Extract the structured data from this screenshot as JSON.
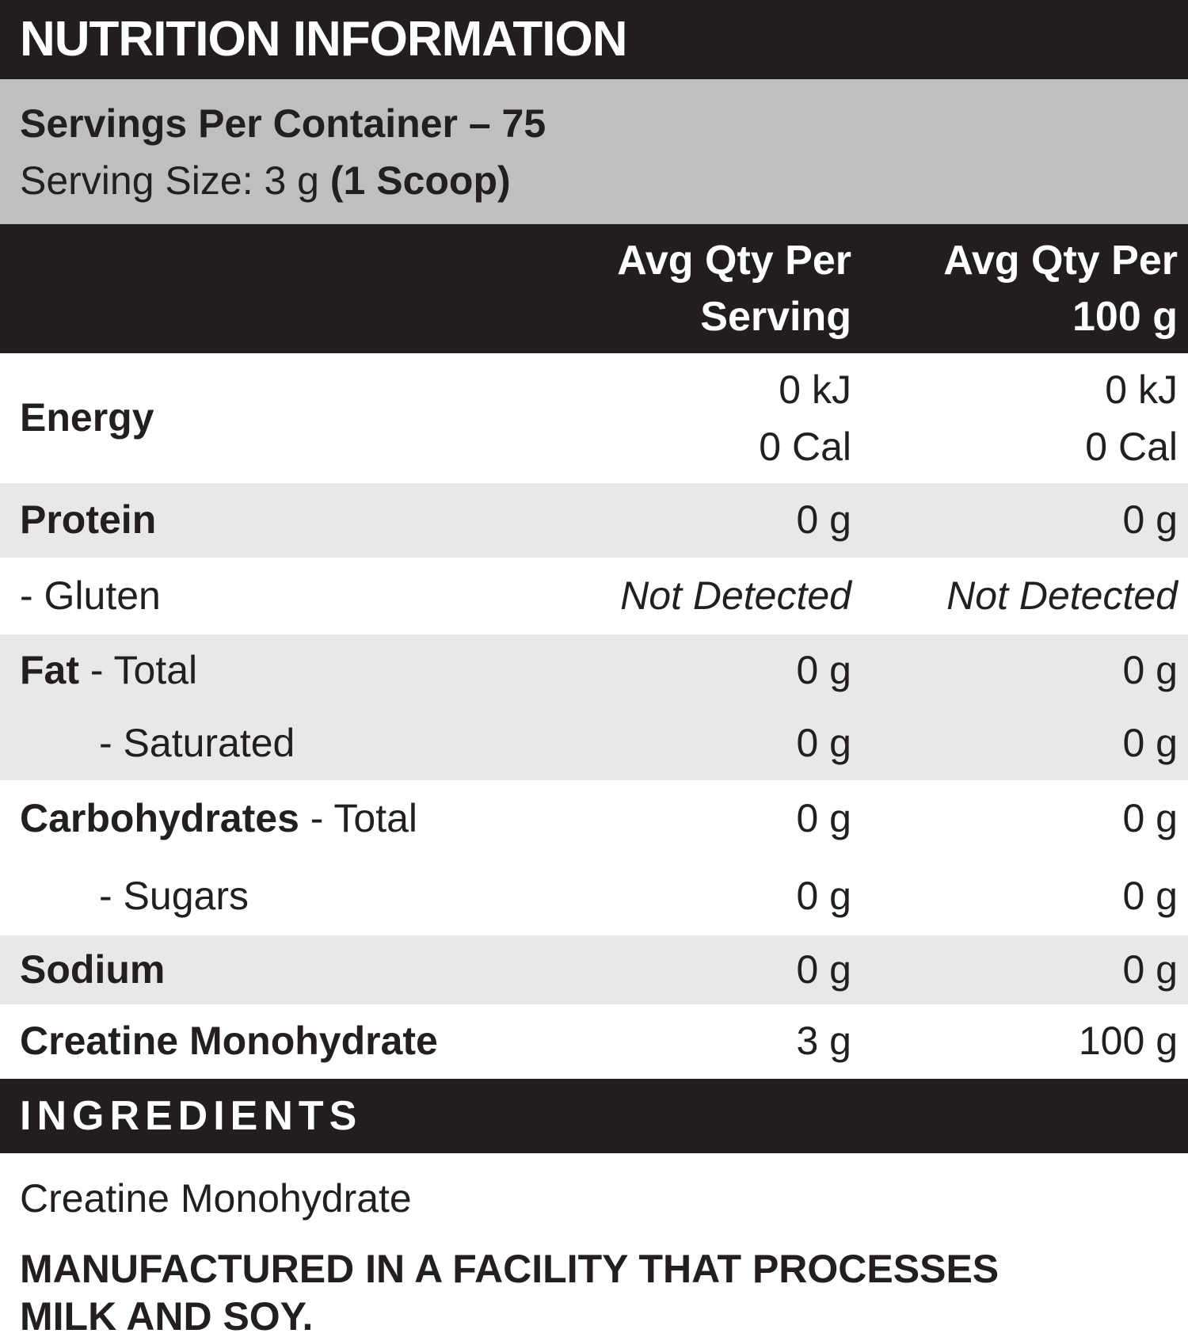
{
  "colors": {
    "black_bar": "#221e1f",
    "servings_gray": "#bdbfc1",
    "row_stripe": "#e8e8e9",
    "text": "#231f20",
    "white": "#ffffff"
  },
  "title": "NUTRITION INFORMATION",
  "servings": {
    "per_container": "Servings Per Container – 75",
    "size_prefix": "Serving Size: 3 g ",
    "size_bold": "(1 Scoop)"
  },
  "columns": {
    "serving": [
      "Avg Qty Per",
      "Serving"
    ],
    "per100": [
      "Avg Qty Per",
      "100 g"
    ]
  },
  "rows": [
    {
      "label_bold": "Energy",
      "label_rest": "",
      "serving_lines": [
        "0 kJ",
        "0 Cal"
      ],
      "per100_lines": [
        "0 kJ",
        "0 Cal"
      ]
    },
    {
      "label_bold": "Protein",
      "label_rest": "",
      "serving": "0 g",
      "per100": "0 g"
    },
    {
      "label_bold": "",
      "label_rest": "- Gluten",
      "serving": "Not Detected",
      "per100": "Not Detected"
    },
    {
      "label_bold": "Fat",
      "label_rest": " - Total",
      "serving": "0 g",
      "per100": "0 g"
    },
    {
      "label_bold": "",
      "label_rest": "- Saturated",
      "serving": "0 g",
      "per100": "0 g"
    },
    {
      "label_bold": "Carbohydrates",
      "label_rest": " - Total",
      "serving": "0 g",
      "per100": "0 g"
    },
    {
      "label_bold": "",
      "label_rest": "- Sugars",
      "serving": "0 g",
      "per100": "0 g"
    },
    {
      "label_bold": "Sodium",
      "label_rest": "",
      "serving": "0 g",
      "per100": "0 g"
    },
    {
      "label_bold": "Creatine Monohydrate",
      "label_rest": "",
      "serving": "3 g",
      "per100": "100 g"
    }
  ],
  "ingredients": {
    "header": "INGREDIENTS",
    "text": "Creatine Monohydrate"
  },
  "allergen": {
    "line1": "MANUFACTURED IN A FACILITY THAT PROCESSES",
    "line2": "MILK AND SOY."
  }
}
